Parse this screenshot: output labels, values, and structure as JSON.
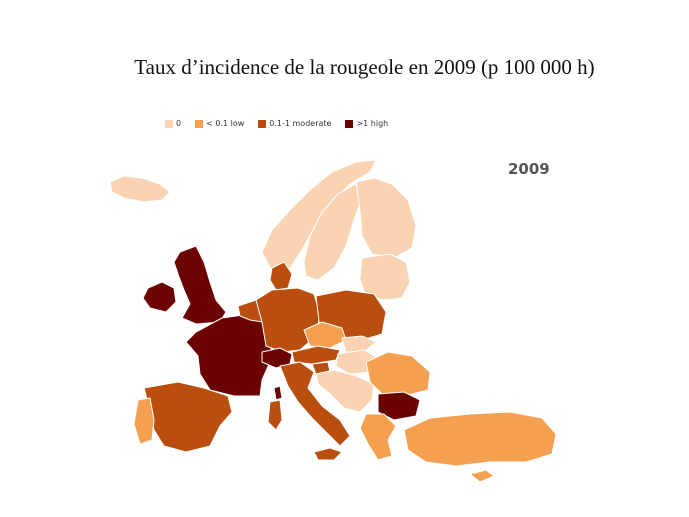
{
  "title": "Taux d’incidence de la rougeole en 2009 (p 100 000 h)",
  "year_label": "2009",
  "legend": [
    {
      "label": "0",
      "color": "#f9d3b2"
    },
    {
      "label": "< 0.1  low",
      "color": "#f5a050"
    },
    {
      "label": "0.1-1  moderate",
      "color": "#b94e0f"
    },
    {
      "label": ">1  high",
      "color": "#6b0303"
    }
  ],
  "categories": {
    "zero": "#f9d3b2",
    "low": "#f5a050",
    "moderate": "#b94e0f",
    "high": "#6b0303"
  }
}
